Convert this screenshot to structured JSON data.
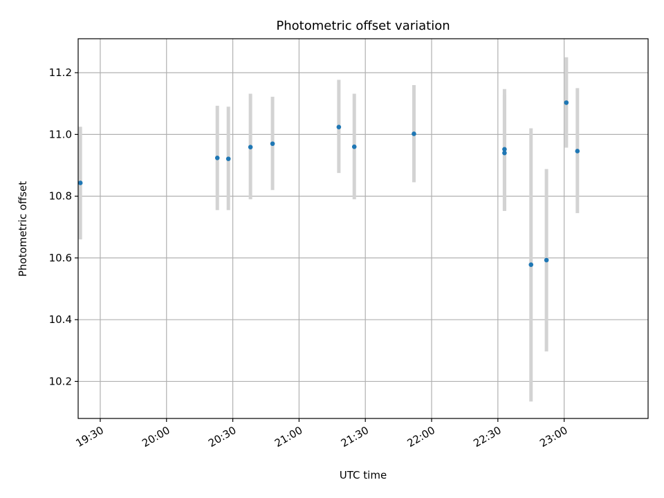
{
  "chart_data": {
    "type": "scatter",
    "title": "Photometric offset variation",
    "xlabel": "UTC time",
    "ylabel": "Photometric offset",
    "x_ticks": [
      "19:30",
      "20:00",
      "20:30",
      "21:00",
      "21:30",
      "22:00",
      "22:30",
      "23:00"
    ],
    "y_ticks": [
      "10.2",
      "10.4",
      "10.6",
      "10.8",
      "11.0",
      "11.2"
    ],
    "xlim": [
      "19:20",
      "23:38"
    ],
    "ylim": [
      10.08,
      11.31
    ],
    "grid": true,
    "colors": {
      "point": "#1f77b4",
      "errorbar": "#d3d3d3",
      "grid": "#b0b0b0"
    },
    "points": [
      {
        "x": "19:21",
        "y": 10.843,
        "ylow": 10.66,
        "yhigh": 11.025
      },
      {
        "x": "20:23",
        "y": 10.924,
        "ylow": 10.755,
        "yhigh": 11.093
      },
      {
        "x": "20:28",
        "y": 10.921,
        "ylow": 10.755,
        "yhigh": 11.09
      },
      {
        "x": "20:38",
        "y": 10.959,
        "ylow": 10.79,
        "yhigh": 11.132
      },
      {
        "x": "20:48",
        "y": 10.97,
        "ylow": 10.82,
        "yhigh": 11.122
      },
      {
        "x": "21:18",
        "y": 11.024,
        "ylow": 10.875,
        "yhigh": 11.177
      },
      {
        "x": "21:25",
        "y": 10.96,
        "ylow": 10.79,
        "yhigh": 11.132
      },
      {
        "x": "21:52",
        "y": 11.002,
        "ylow": 10.845,
        "yhigh": 11.16
      },
      {
        "x": "22:33",
        "y": 10.94,
        "ylow": 10.752,
        "yhigh": 11.128
      },
      {
        "x": "22:33",
        "y": 10.952,
        "ylow": 10.755,
        "yhigh": 11.147
      },
      {
        "x": "22:45",
        "y": 10.578,
        "ylow": 10.135,
        "yhigh": 11.02
      },
      {
        "x": "22:52",
        "y": 10.593,
        "ylow": 10.297,
        "yhigh": 10.888
      },
      {
        "x": "23:01",
        "y": 11.103,
        "ylow": 10.957,
        "yhigh": 11.25
      },
      {
        "x": "23:06",
        "y": 10.946,
        "ylow": 10.745,
        "yhigh": 11.15
      }
    ]
  }
}
